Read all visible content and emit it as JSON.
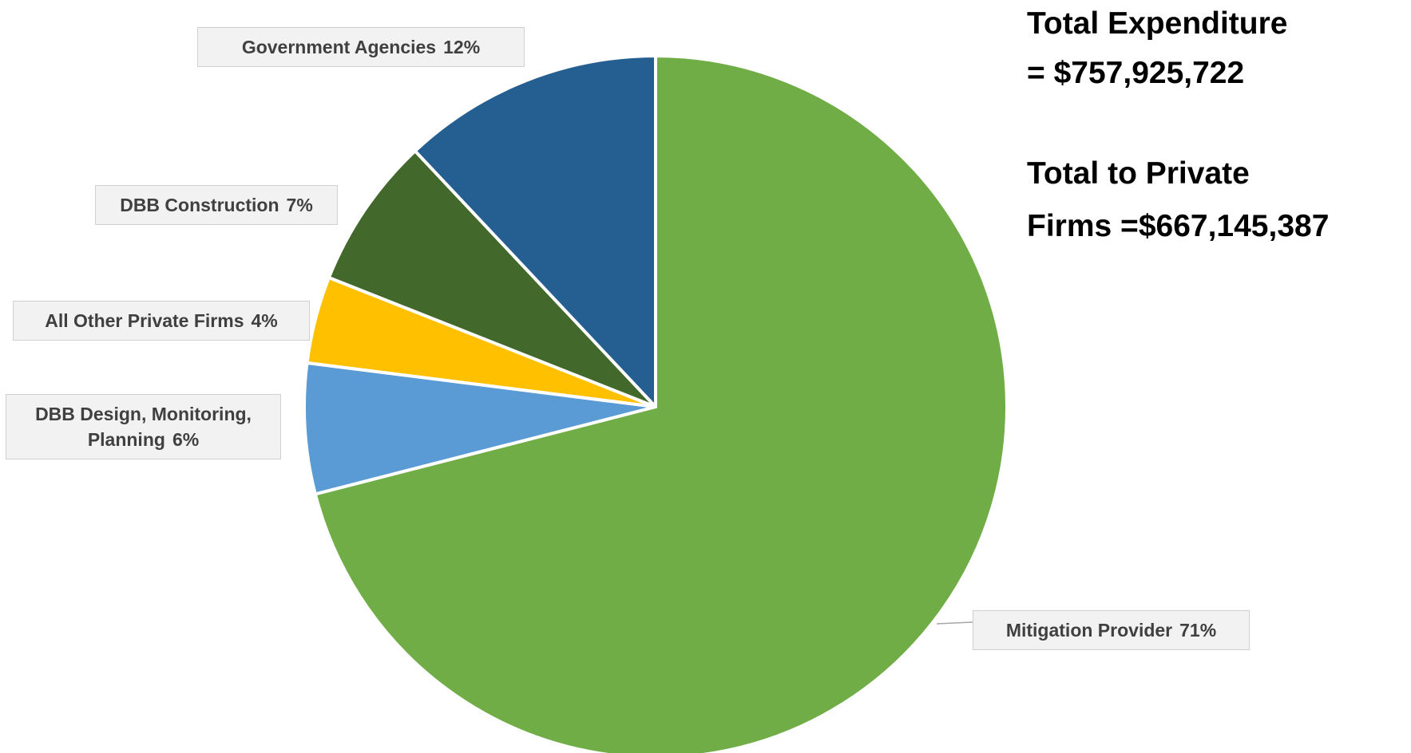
{
  "chart_data": {
    "type": "pie",
    "categories": [
      "Mitigation Provider",
      "DBB Design, Monitoring, Planning",
      "All Other Private Firms",
      "DBB Construction",
      "Government Agencies"
    ],
    "values": [
      71,
      6,
      4,
      7,
      12
    ],
    "value_labels": [
      "71%",
      "6%",
      "4%",
      "7%",
      "12%"
    ],
    "colors": [
      "#70ad47",
      "#5b9bd5",
      "#ffc000",
      "#43682b",
      "#255e91"
    ],
    "annotations": [
      "Total Expenditure",
      "= $757,925,722",
      "Total to Private",
      "Firms  =$667,145,387"
    ]
  }
}
